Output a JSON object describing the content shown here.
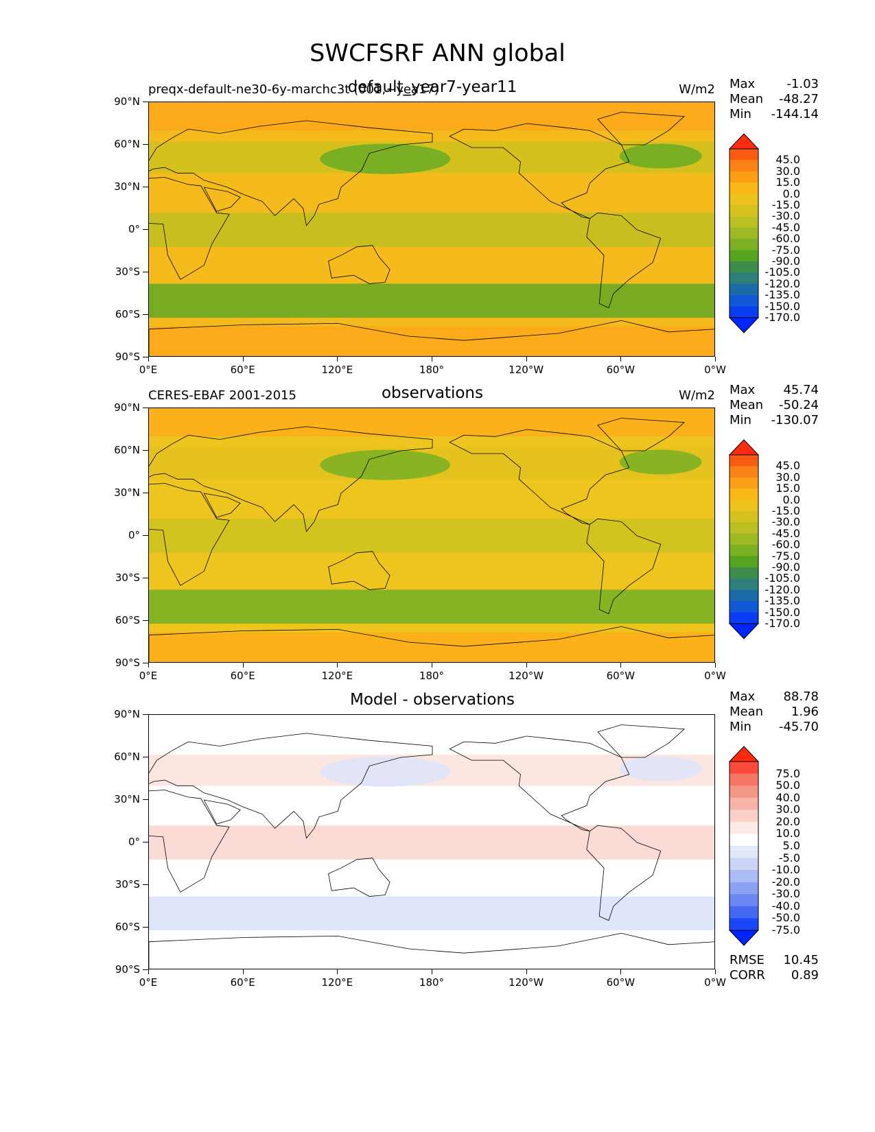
{
  "title": "SWCFSRF ANN global",
  "axes": {
    "lat_labels": [
      "90°N",
      "60°N",
      "30°N",
      "0°",
      "30°S",
      "60°S",
      "90°S"
    ],
    "lon_labels": [
      "0°E",
      "60°E",
      "120°E",
      "180°",
      "120°W",
      "60°W",
      "0°W"
    ]
  },
  "panels": [
    {
      "left_label": "preqx-default-ne30-6y-marchc3t (001,~yea17)",
      "center_label": "default_year7-year11",
      "units": "W/m2",
      "stats": [
        {
          "label": "Max",
          "value": "-1.03"
        },
        {
          "label": "Mean",
          "value": "-48.27"
        },
        {
          "label": "Min",
          "value": "-144.14"
        }
      ],
      "colorbar": {
        "levels": [
          "45.0",
          "30.0",
          "15.0",
          "0.0",
          "-15.0",
          "-30.0",
          "-45.0",
          "-60.0",
          "-75.0",
          "-90.0",
          "-105.0",
          "-120.0",
          "-135.0",
          "-150.0",
          "-170.0"
        ],
        "colors": [
          "#ff2a0e",
          "#fd5b12",
          "#fb8214",
          "#fa9e16",
          "#fbb918",
          "#ecc21c",
          "#d6c21e",
          "#bcbf21",
          "#9dba24",
          "#7ab021",
          "#56a31f",
          "#3d8c4c",
          "#2e7f7a",
          "#1a6aa6",
          "#1158d8",
          "#0a3cf5",
          "#0026ff"
        ]
      },
      "map": {
        "base": "#f5bb1c",
        "polar": "#fca91a",
        "land_n": "#d2c21f",
        "storm": "#6aaa24",
        "trop": "#c4bf21",
        "pole_land": "#fca91a"
      }
    },
    {
      "left_label": "CERES-EBAF 2001-2015",
      "center_label": "observations",
      "units": "W/m2",
      "stats": [
        {
          "label": "Max",
          "value": "45.74"
        },
        {
          "label": "Mean",
          "value": "-50.24"
        },
        {
          "label": "Min",
          "value": "-130.07"
        }
      ],
      "colorbar": {
        "levels": [
          "45.0",
          "30.0",
          "15.0",
          "0.0",
          "-15.0",
          "-30.0",
          "-45.0",
          "-60.0",
          "-75.0",
          "-90.0",
          "-105.0",
          "-120.0",
          "-135.0",
          "-150.0",
          "-170.0"
        ],
        "colors": [
          "#ff2a0e",
          "#fd5b12",
          "#fb8214",
          "#fa9e16",
          "#fbb918",
          "#ecc21c",
          "#d6c21e",
          "#bcbf21",
          "#9dba24",
          "#7ab021",
          "#56a31f",
          "#3d8c4c",
          "#2e7f7a",
          "#1a6aa6",
          "#1158d8",
          "#0a3cf5",
          "#0026ff"
        ]
      },
      "map": {
        "base": "#eec51e",
        "polar": "#fbae1a",
        "land_n": "#e4c11f",
        "storm": "#79b024",
        "trop": "#cfc21f",
        "pole_land": "#f9a51a"
      }
    },
    {
      "left_label": "",
      "center_label": "Model - observations",
      "units": "",
      "stats": [
        {
          "label": "Max",
          "value": "88.78"
        },
        {
          "label": "Mean",
          "value": "1.96"
        },
        {
          "label": "Min",
          "value": "-45.70"
        }
      ],
      "extra_stats": [
        {
          "label": "RMSE",
          "value": "10.45"
        },
        {
          "label": "CORR",
          "value": "0.89"
        }
      ],
      "colorbar": {
        "levels": [
          "75.0",
          "50.0",
          "40.0",
          "30.0",
          "20.0",
          "10.0",
          "5.0",
          "-5.0",
          "-10.0",
          "-20.0",
          "-30.0",
          "-40.0",
          "-50.0",
          "-75.0"
        ],
        "colors": [
          "#ff2a0e",
          "#fb4a3a",
          "#f67562",
          "#f49685",
          "#f7b4a8",
          "#fad1c9",
          "#fde9e5",
          "#ffffff",
          "#e4e8fb",
          "#ccd4f8",
          "#aebcf6",
          "#8ea2f3",
          "#6b86f1",
          "#4468f4",
          "#1a46fb",
          "#0022ff"
        ]
      },
      "map": {
        "base": "#ffffff",
        "polar": "#ffffff",
        "land_n": "#fbe3de",
        "storm": "#dde3fa",
        "trop": "#f9d7d0",
        "pole_land": "#ffffff"
      }
    }
  ]
}
